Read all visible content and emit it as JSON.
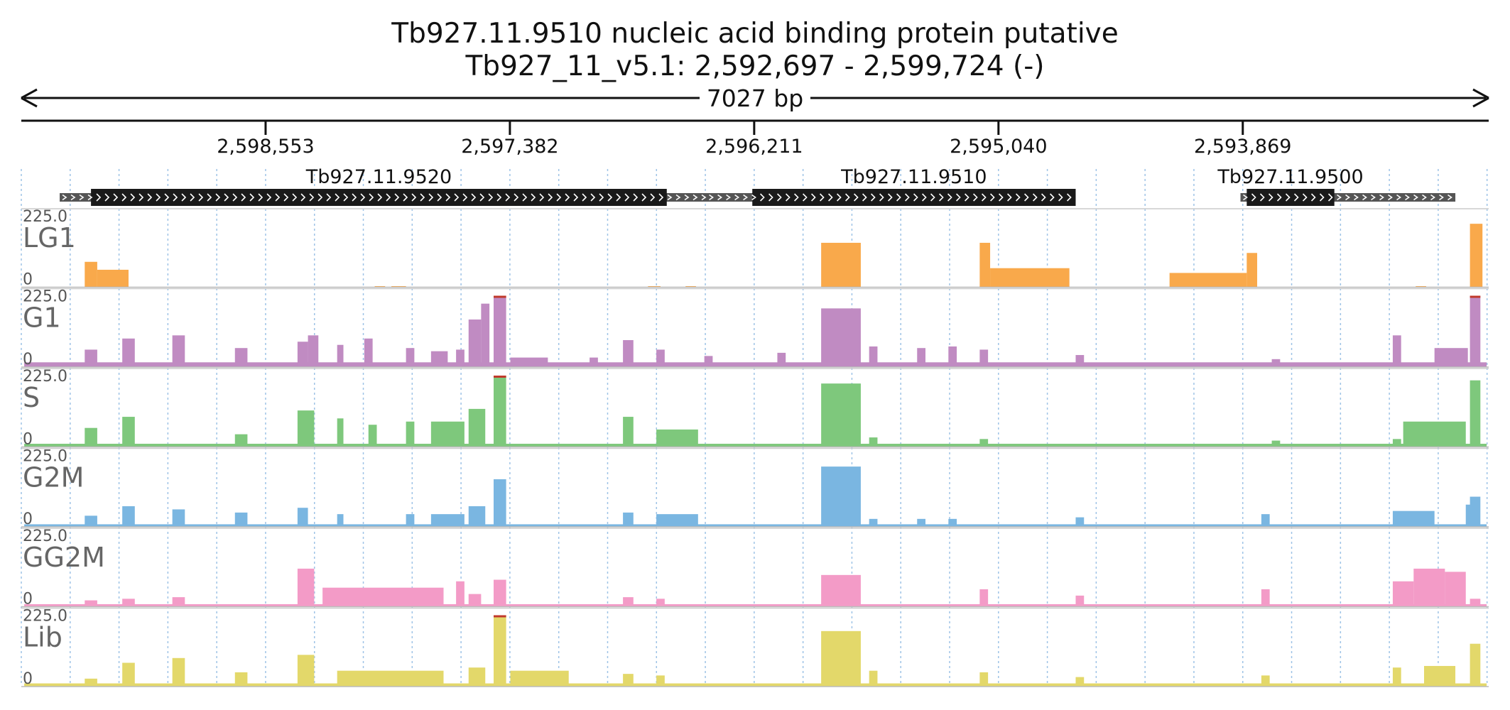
{
  "title": {
    "line1": "Tb927.11.9510  nucleic acid binding protein  putative",
    "line2": "Tb927_11_v5.1: 2,592,697 - 2,599,724 (-)"
  },
  "length_label": "7027 bp",
  "chart_data": {
    "type": "area",
    "region": {
      "chromosome": "Tb927_11_v5.1",
      "start": 2592697,
      "end": 2599724,
      "strand": "-"
    },
    "xlim": [
      2599724,
      2592697
    ],
    "ylim": [
      0,
      225
    ],
    "axis_ticks": [
      {
        "pos": 2598553,
        "label": "2,598,553"
      },
      {
        "pos": 2597382,
        "label": "2,597,382"
      },
      {
        "pos": 2596211,
        "label": "2,596,211"
      },
      {
        "pos": 2595040,
        "label": "2,595,040"
      },
      {
        "pos": 2593869,
        "label": "2,593,869"
      }
    ],
    "genes": [
      {
        "name": "Tb927.11.9520",
        "utr": [
          2599540,
          2596370
        ],
        "cds": [
          2599390,
          2596630
        ]
      },
      {
        "name": "Tb927.11.9510",
        "utr": [
          2596440,
          2594670
        ],
        "cds": [
          2596220,
          2594670
        ]
      },
      {
        "name": "Tb927.11.9500",
        "utr": [
          2593880,
          2592850
        ],
        "cds": [
          2593850,
          2593430
        ]
      }
    ],
    "scale_max_label": "225.0",
    "scale_min_label": "0",
    "tracks": [
      {
        "name": "LG1",
        "color": "#f9a94b",
        "peaks": [
          [
            2599420,
            2599360,
            80
          ],
          [
            2599360,
            2599210,
            55
          ],
          [
            2598030,
            2597980,
            3
          ],
          [
            2597950,
            2597880,
            3
          ],
          [
            2596720,
            2596660,
            2
          ],
          [
            2596540,
            2596490,
            2
          ],
          [
            2595890,
            2595700,
            140
          ],
          [
            2595130,
            2595080,
            140
          ],
          [
            2595080,
            2594700,
            60
          ],
          [
            2594220,
            2593850,
            45
          ],
          [
            2593850,
            2593800,
            108
          ],
          [
            2593040,
            2592990,
            2
          ],
          [
            2592780,
            2592720,
            200
          ]
        ]
      },
      {
        "name": "G1",
        "color": "#c08bc2",
        "peaks": [
          [
            2599710,
            2592700,
            15
          ],
          [
            2599420,
            2599360,
            55
          ],
          [
            2599240,
            2599180,
            90
          ],
          [
            2599000,
            2598940,
            100
          ],
          [
            2598700,
            2598640,
            60
          ],
          [
            2598400,
            2598350,
            80
          ],
          [
            2598350,
            2598300,
            100
          ],
          [
            2598210,
            2598180,
            70
          ],
          [
            2598080,
            2598040,
            90
          ],
          [
            2597880,
            2597840,
            60
          ],
          [
            2597760,
            2597680,
            50
          ],
          [
            2597640,
            2597600,
            55
          ],
          [
            2597580,
            2597520,
            150
          ],
          [
            2597520,
            2597480,
            200
          ],
          [
            2597460,
            2597400,
            225
          ],
          [
            2597380,
            2597200,
            30
          ],
          [
            2597000,
            2596960,
            30
          ],
          [
            2596840,
            2596790,
            85
          ],
          [
            2596680,
            2596640,
            55
          ],
          [
            2596450,
            2596410,
            35
          ],
          [
            2596100,
            2596060,
            45
          ],
          [
            2595890,
            2595700,
            185
          ],
          [
            2595660,
            2595620,
            65
          ],
          [
            2595430,
            2595390,
            60
          ],
          [
            2595280,
            2595240,
            65
          ],
          [
            2595130,
            2595090,
            55
          ],
          [
            2594670,
            2594630,
            38
          ],
          [
            2593730,
            2593690,
            25
          ],
          [
            2593150,
            2593110,
            100
          ],
          [
            2592950,
            2592790,
            60
          ],
          [
            2592780,
            2592730,
            225
          ]
        ]
      },
      {
        "name": "S",
        "color": "#7ec87c",
        "peaks": [
          [
            2599710,
            2592700,
            10
          ],
          [
            2599420,
            2599360,
            60
          ],
          [
            2599240,
            2599180,
            95
          ],
          [
            2598700,
            2598640,
            40
          ],
          [
            2598400,
            2598320,
            115
          ],
          [
            2598210,
            2598180,
            90
          ],
          [
            2598060,
            2598020,
            70
          ],
          [
            2597880,
            2597840,
            80
          ],
          [
            2597760,
            2597600,
            80
          ],
          [
            2597580,
            2597500,
            120
          ],
          [
            2597460,
            2597400,
            225
          ],
          [
            2596840,
            2596790,
            95
          ],
          [
            2596680,
            2596480,
            55
          ],
          [
            2595890,
            2595700,
            200
          ],
          [
            2595660,
            2595620,
            30
          ],
          [
            2595130,
            2595090,
            25
          ],
          [
            2593730,
            2593690,
            20
          ],
          [
            2593150,
            2593110,
            25
          ],
          [
            2593100,
            2592800,
            80
          ],
          [
            2592780,
            2592730,
            210
          ]
        ]
      },
      {
        "name": "G2M",
        "color": "#7ab6e1",
        "peaks": [
          [
            2599710,
            2592700,
            8
          ],
          [
            2599420,
            2599360,
            35
          ],
          [
            2599240,
            2599180,
            65
          ],
          [
            2599000,
            2598940,
            55
          ],
          [
            2598700,
            2598640,
            45
          ],
          [
            2598400,
            2598350,
            60
          ],
          [
            2598210,
            2598180,
            40
          ],
          [
            2597880,
            2597840,
            40
          ],
          [
            2597760,
            2597600,
            40
          ],
          [
            2597580,
            2597500,
            65
          ],
          [
            2597460,
            2597400,
            150
          ],
          [
            2596840,
            2596790,
            45
          ],
          [
            2596680,
            2596480,
            40
          ],
          [
            2595890,
            2595700,
            190
          ],
          [
            2595660,
            2595620,
            25
          ],
          [
            2595430,
            2595390,
            25
          ],
          [
            2595280,
            2595240,
            25
          ],
          [
            2594670,
            2594630,
            30
          ],
          [
            2593780,
            2593740,
            40
          ],
          [
            2593150,
            2592950,
            50
          ],
          [
            2592800,
            2592760,
            70
          ],
          [
            2592780,
            2592730,
            95
          ]
        ]
      },
      {
        "name": "GG2M",
        "color": "#f39bc7",
        "peaks": [
          [
            2599710,
            2592700,
            8
          ],
          [
            2599420,
            2599360,
            20
          ],
          [
            2599240,
            2599180,
            25
          ],
          [
            2599000,
            2598940,
            30
          ],
          [
            2598400,
            2598320,
            120
          ],
          [
            2598280,
            2597700,
            60
          ],
          [
            2597640,
            2597600,
            80
          ],
          [
            2597580,
            2597520,
            40
          ],
          [
            2597460,
            2597400,
            85
          ],
          [
            2596840,
            2596790,
            30
          ],
          [
            2596680,
            2596640,
            25
          ],
          [
            2595890,
            2595700,
            100
          ],
          [
            2595130,
            2595090,
            55
          ],
          [
            2594670,
            2594630,
            35
          ],
          [
            2593780,
            2593740,
            55
          ],
          [
            2593150,
            2593050,
            80
          ],
          [
            2593050,
            2592900,
            120
          ],
          [
            2592900,
            2592800,
            110
          ],
          [
            2592780,
            2592730,
            25
          ]
        ]
      },
      {
        "name": "Lib",
        "color": "#e3d86a",
        "peaks": [
          [
            2599710,
            2592700,
            10
          ],
          [
            2599420,
            2599360,
            25
          ],
          [
            2599240,
            2599180,
            75
          ],
          [
            2599000,
            2598940,
            90
          ],
          [
            2598700,
            2598640,
            45
          ],
          [
            2598400,
            2598320,
            100
          ],
          [
            2598210,
            2597700,
            50
          ],
          [
            2597580,
            2597500,
            60
          ],
          [
            2597460,
            2597400,
            225
          ],
          [
            2597380,
            2597100,
            50
          ],
          [
            2596840,
            2596790,
            40
          ],
          [
            2596680,
            2596640,
            35
          ],
          [
            2595890,
            2595700,
            175
          ],
          [
            2595660,
            2595620,
            50
          ],
          [
            2595130,
            2595090,
            45
          ],
          [
            2594670,
            2594630,
            30
          ],
          [
            2593780,
            2593740,
            35
          ],
          [
            2593150,
            2593110,
            60
          ],
          [
            2593000,
            2592850,
            65
          ],
          [
            2592780,
            2592730,
            135
          ]
        ]
      }
    ],
    "grid": true
  }
}
